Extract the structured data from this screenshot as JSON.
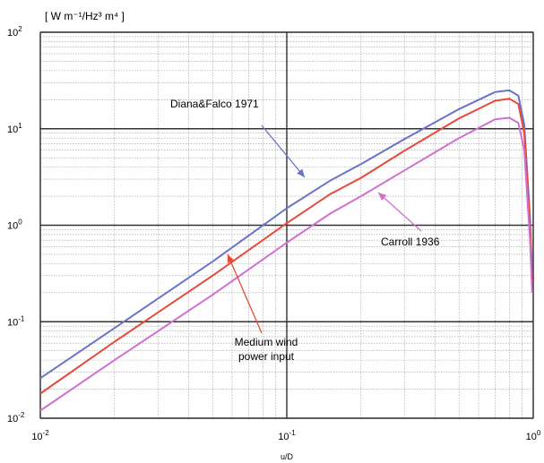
{
  "chart_data": {
    "type": "line",
    "xscale": "log",
    "yscale": "log",
    "xlim": [
      0.01,
      1
    ],
    "ylim": [
      0.01,
      100
    ],
    "xlabel": "u/D",
    "units_label": "[ W m⁻¹/Hz³ m⁴ ]",
    "x_ticks": [
      {
        "base": "10",
        "exp": "-2"
      },
      {
        "base": "10",
        "exp": "-1"
      },
      {
        "base": "10",
        "exp": "0"
      }
    ],
    "y_ticks": [
      {
        "base": "10",
        "exp": "-2"
      },
      {
        "base": "10",
        "exp": "-1"
      },
      {
        "base": "10",
        "exp": "0"
      },
      {
        "base": "10",
        "exp": "1"
      },
      {
        "base": "10",
        "exp": "2"
      }
    ],
    "grid": true,
    "series": [
      {
        "name": "Diana&Falco 1971",
        "color": "#6a73c8",
        "points": [
          [
            0.01,
            0.026
          ],
          [
            0.02,
            0.086
          ],
          [
            0.05,
            0.42
          ],
          [
            0.1,
            1.5
          ],
          [
            0.15,
            2.9
          ],
          [
            0.2,
            4.3
          ],
          [
            0.3,
            7.8
          ],
          [
            0.5,
            16
          ],
          [
            0.7,
            24
          ],
          [
            0.8,
            25
          ],
          [
            0.87,
            22
          ],
          [
            0.92,
            11
          ],
          [
            0.97,
            1.2
          ],
          [
            0.99,
            0.3
          ]
        ]
      },
      {
        "name": "Medium wind power input",
        "color": "#e84a3a",
        "points": [
          [
            0.01,
            0.018
          ],
          [
            0.02,
            0.062
          ],
          [
            0.05,
            0.3
          ],
          [
            0.1,
            1.05
          ],
          [
            0.15,
            2.1
          ],
          [
            0.2,
            3.1
          ],
          [
            0.3,
            5.9
          ],
          [
            0.5,
            12.8
          ],
          [
            0.7,
            19.5
          ],
          [
            0.8,
            20.5
          ],
          [
            0.87,
            18
          ],
          [
            0.92,
            9
          ],
          [
            0.97,
            1.0
          ],
          [
            0.99,
            0.25
          ]
        ]
      },
      {
        "name": "Carroll 1936",
        "color": "#d070d0",
        "points": [
          [
            0.01,
            0.012
          ],
          [
            0.02,
            0.04
          ],
          [
            0.05,
            0.19
          ],
          [
            0.1,
            0.66
          ],
          [
            0.15,
            1.32
          ],
          [
            0.2,
            2.0
          ],
          [
            0.3,
            3.7
          ],
          [
            0.5,
            8.0
          ],
          [
            0.7,
            12.5
          ],
          [
            0.8,
            13
          ],
          [
            0.87,
            11.5
          ],
          [
            0.92,
            6
          ],
          [
            0.97,
            0.7
          ],
          [
            0.99,
            0.2
          ]
        ]
      }
    ],
    "annotations": [
      {
        "text": "Diana&Falco  1971",
        "series": 0
      },
      {
        "text": "Carroll 1936",
        "series": 2
      },
      {
        "lines": [
          "Medium wind",
          "power input"
        ],
        "series": 1
      }
    ]
  }
}
